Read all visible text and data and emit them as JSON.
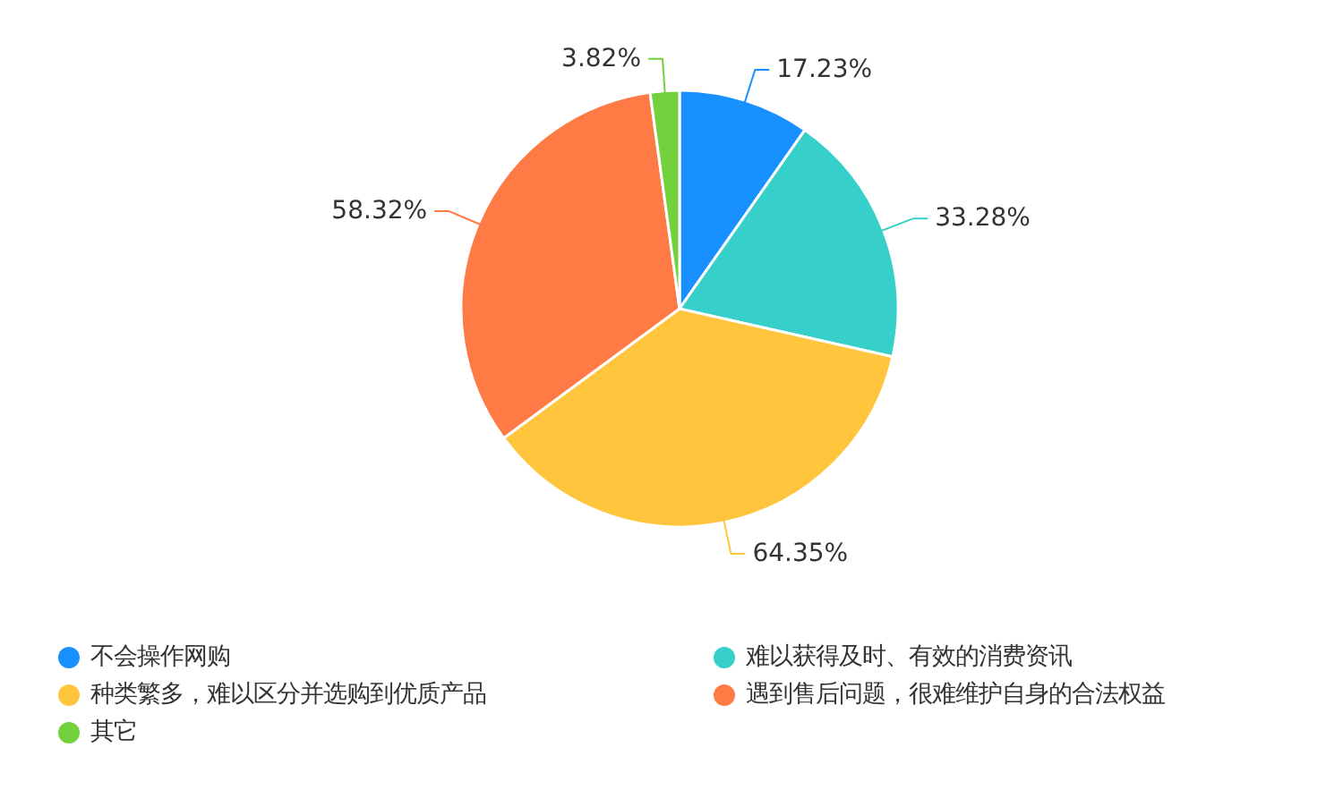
{
  "chart_data": {
    "type": "pie",
    "categories": [
      "不会操作网购",
      "难以获得及时、有效的消费资讯",
      "种类繁多，难以区分并选购到优质产品",
      "遇到售后问题，很难维护自身的合法权益",
      "其它"
    ],
    "values": [
      17.23,
      33.28,
      64.35,
      58.32,
      3.82
    ],
    "colors": [
      "#1890ff",
      "#36cfc9",
      "#ffc53d",
      "#ff7a45",
      "#73d13d"
    ],
    "value_labels": [
      "17.23%",
      "33.28%",
      "64.35%",
      "58.32%",
      "3.82%"
    ],
    "legend": "bottom"
  }
}
